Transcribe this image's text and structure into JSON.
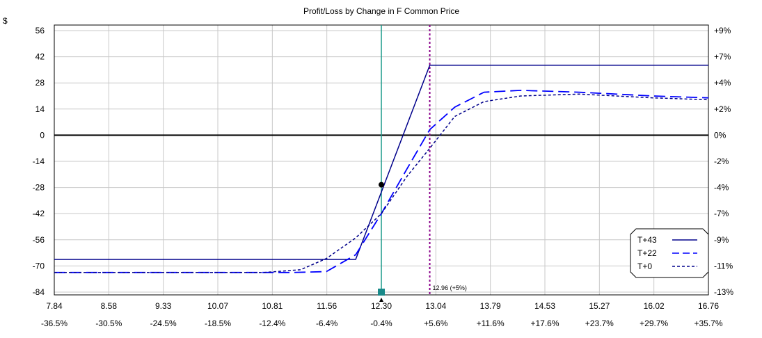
{
  "chart_data": {
    "type": "line",
    "title": "Profit/Loss by Change in F Common Price",
    "y_unit_label": "$",
    "xlim": [
      7.84,
      16.76
    ],
    "ylim": [
      -84,
      56
    ],
    "x_ticks": [
      "7.84",
      "8.58",
      "9.33",
      "10.07",
      "10.81",
      "11.56",
      "12.30",
      "13.04",
      "13.79",
      "14.53",
      "15.27",
      "16.02",
      "16.76"
    ],
    "x_pct_ticks": [
      "-36.5%",
      "-30.5%",
      "-24.5%",
      "-18.5%",
      "-12.4%",
      "-6.4%",
      "-0.4%",
      "+5.6%",
      "+11.6%",
      "+17.6%",
      "+23.7%",
      "+29.7%",
      "+35.7%"
    ],
    "y_ticks": [
      "56",
      "42",
      "28",
      "14",
      "0",
      "-14",
      "-28",
      "-42",
      "-56",
      "-70",
      "-84"
    ],
    "y_right_ticks": [
      "+9%",
      "+7%",
      "+4%",
      "+2%",
      "0%",
      "-2%",
      "-4%",
      "-7%",
      "-9%",
      "-11%",
      "-13%"
    ],
    "current_price": 12.3,
    "current_price_pl": -26.5,
    "target_price": 12.96,
    "target_label": "12.96 (+5%)",
    "series": [
      {
        "name": "T+43",
        "legend_sample": "———",
        "color": "#00008b",
        "dash": "",
        "x": [
          7.84,
          11.95,
          12.96,
          16.76
        ],
        "y": [
          -66.5,
          -66.5,
          37.5,
          37.5
        ]
      },
      {
        "name": "T+22",
        "legend_sample": "*— –",
        "color": "#0000ff",
        "dash": "16,7",
        "x": [
          7.84,
          11.1,
          11.55,
          11.95,
          12.3,
          12.65,
          12.96,
          13.3,
          13.7,
          14.2,
          15.0,
          16.0,
          16.76
        ],
        "y": [
          -73.5,
          -73.5,
          -73,
          -64,
          -42,
          -18,
          3,
          15,
          23,
          24,
          23,
          21,
          20
        ]
      },
      {
        "name": "T+0",
        "legend_sample": "-----",
        "color": "#00008b",
        "dash": "4,3",
        "x": [
          7.84,
          10.7,
          11.2,
          11.55,
          11.95,
          12.3,
          12.65,
          12.96,
          13.3,
          13.7,
          14.2,
          15.0,
          16.0,
          16.76
        ],
        "y": [
          -73.5,
          -73.5,
          -72,
          -66,
          -55,
          -42,
          -22,
          -7,
          10,
          18,
          21,
          22,
          20,
          19
        ]
      }
    ],
    "grid": true,
    "legend_position": "bottom-right"
  }
}
